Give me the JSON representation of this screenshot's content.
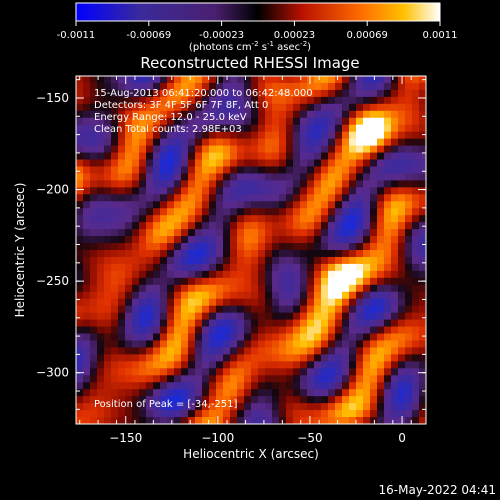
{
  "colorbar": {
    "ticks": [
      "-0.0011",
      "-0.00069",
      "-0.00023",
      "0.00023",
      "0.00069",
      "0.0011"
    ],
    "unit": "(photons cm",
    "unit_exp1": "-2",
    "unit_s": " s",
    "unit_exp2": "-1",
    "unit_asec": " asec",
    "unit_exp3": "-2",
    "unit_close": ")",
    "colors": [
      "#0000ff",
      "#3a2a9a",
      "#5a2a8a",
      "#000000",
      "#b81000",
      "#ff6a00",
      "#ffb400",
      "#ffffff"
    ]
  },
  "chart_data": {
    "type": "heatmap",
    "title": "Reconstructed RHESSI Image",
    "xlabel": "Heliocentric X (arcsec)",
    "ylabel": "Heliocentric Y (arcsec)",
    "xlim": [
      -177,
      13
    ],
    "ylim": [
      -328,
      -138
    ],
    "x_ticks": [
      -150,
      -100,
      -50,
      0
    ],
    "y_ticks": [
      -150,
      -200,
      -250,
      -300
    ],
    "x_tick_labels": [
      "−150",
      "−100",
      "−50",
      "0"
    ],
    "y_tick_labels": [
      "−150",
      "−200",
      "−250",
      "−300"
    ],
    "value_range": [
      -0.0011,
      0.0011
    ],
    "peak": [
      -34,
      -251
    ],
    "info_lines": [
      "15-Aug-2013 06:41:20.000 to 06:42:48.000",
      "Detectors: 3F 4F 5F 6F 7F 8F, Att 0",
      "Energy Range: 12.0 - 25.0 keV",
      "Clean     Total counts: 2.98E+03"
    ],
    "peak_label": "Position of Peak = [-34,-251]"
  },
  "timestamp": "16-May-2022 04:41"
}
